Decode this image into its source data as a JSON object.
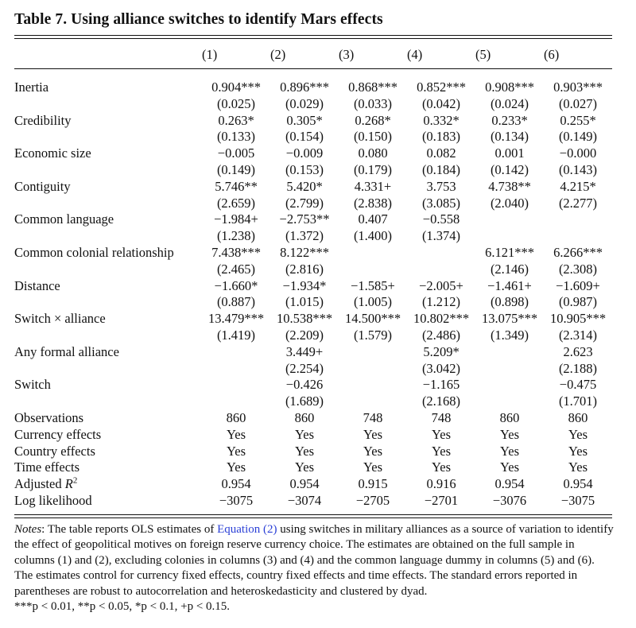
{
  "title": "Table 7. Using alliance switches to identify Mars effects",
  "columns": [
    "(1)",
    "(2)",
    "(3)",
    "(4)",
    "(5)",
    "(6)"
  ],
  "rows": [
    {
      "label": "Inertia",
      "coef": [
        "0.904***",
        "0.896***",
        "0.868***",
        "0.852***",
        "0.908***",
        "0.903***"
      ],
      "se": [
        "(0.025)",
        "(0.029)",
        "(0.033)",
        "(0.042)",
        "(0.024)",
        "(0.027)"
      ]
    },
    {
      "label": "Credibility",
      "coef": [
        "0.263*",
        "0.305*",
        "0.268*",
        "0.332*",
        "0.233*",
        "0.255*"
      ],
      "se": [
        "(0.133)",
        "(0.154)",
        "(0.150)",
        "(0.183)",
        "(0.134)",
        "(0.149)"
      ]
    },
    {
      "label": "Economic size",
      "coef": [
        "−0.005",
        "−0.009",
        "0.080",
        "0.082",
        "0.001",
        "−0.000"
      ],
      "se": [
        "(0.149)",
        "(0.153)",
        "(0.179)",
        "(0.184)",
        "(0.142)",
        "(0.143)"
      ]
    },
    {
      "label": "Contiguity",
      "coef": [
        "5.746**",
        "5.420*",
        "4.331+",
        "3.753",
        "4.738**",
        "4.215*"
      ],
      "se": [
        "(2.659)",
        "(2.799)",
        "(2.838)",
        "(3.085)",
        "(2.040)",
        "(2.277)"
      ]
    },
    {
      "label": "Common language",
      "coef": [
        "−1.984+",
        "−2.753**",
        "0.407",
        "−0.558",
        "",
        ""
      ],
      "se": [
        "(1.238)",
        "(1.372)",
        "(1.400)",
        "(1.374)",
        "",
        ""
      ]
    },
    {
      "label": "Common colonial relationship",
      "coef": [
        "7.438***",
        "8.122***",
        "",
        "",
        "6.121***",
        "6.266***"
      ],
      "se": [
        "(2.465)",
        "(2.816)",
        "",
        "",
        "(2.146)",
        "(2.308)"
      ]
    },
    {
      "label": "Distance",
      "coef": [
        "−1.660*",
        "−1.934*",
        "−1.585+",
        "−2.005+",
        "−1.461+",
        "−1.609+"
      ],
      "se": [
        "(0.887)",
        "(1.015)",
        "(1.005)",
        "(1.212)",
        "(0.898)",
        "(0.987)"
      ]
    },
    {
      "label": "Switch × alliance",
      "coef": [
        "13.479***",
        "10.538***",
        "14.500***",
        "10.802***",
        "13.075***",
        "10.905***"
      ],
      "se": [
        "(1.419)",
        "(2.209)",
        "(1.579)",
        "(2.486)",
        "(1.349)",
        "(2.314)"
      ]
    },
    {
      "label": "Any formal alliance",
      "coef": [
        "",
        "3.449+",
        "",
        "5.209*",
        "",
        "2.623"
      ],
      "se": [
        "",
        "(2.254)",
        "",
        "(3.042)",
        "",
        "(2.188)"
      ]
    },
    {
      "label": "Switch",
      "coef": [
        "",
        "−0.426",
        "",
        "−1.165",
        "",
        "−0.475"
      ],
      "se": [
        "",
        "(1.689)",
        "",
        "(2.168)",
        "",
        "(1.701)"
      ]
    }
  ],
  "stats": [
    {
      "label": "Observations",
      "values": [
        "860",
        "860",
        "748",
        "748",
        "860",
        "860"
      ]
    },
    {
      "label": "Currency effects",
      "values": [
        "Yes",
        "Yes",
        "Yes",
        "Yes",
        "Yes",
        "Yes"
      ]
    },
    {
      "label": "Country effects",
      "values": [
        "Yes",
        "Yes",
        "Yes",
        "Yes",
        "Yes",
        "Yes"
      ]
    },
    {
      "label": "Time effects",
      "values": [
        "Yes",
        "Yes",
        "Yes",
        "Yes",
        "Yes",
        "Yes"
      ]
    },
    {
      "label": "Adjusted R",
      "label_sup": "2",
      "values": [
        "0.954",
        "0.954",
        "0.915",
        "0.916",
        "0.954",
        "0.954"
      ]
    },
    {
      "label": "Log likelihood",
      "values": [
        "−3075",
        "−3074",
        "−2705",
        "−2701",
        "−3076",
        "−3075"
      ]
    }
  ],
  "notes": {
    "label": "Notes",
    "before_link": ": The table reports OLS estimates of ",
    "link": "Equation (2)",
    "after_link": " using switches in military alliances as a source of variation to identify the effect of geopolitical motives on foreign reserve currency choice. The estimates are obtained on the full sample in columns (1) and (2), excluding colonies in columns (3) and (4) and the common language dummy in columns (5) and (6). The estimates control for currency fixed effects, country fixed effects and time effects. The standard errors reported in parentheses are robust to autocorrelation and heteroskedasticity and clustered by dyad.",
    "significance": "***p < 0.01, **p < 0.05, *p < 0.1, +p < 0.15."
  }
}
